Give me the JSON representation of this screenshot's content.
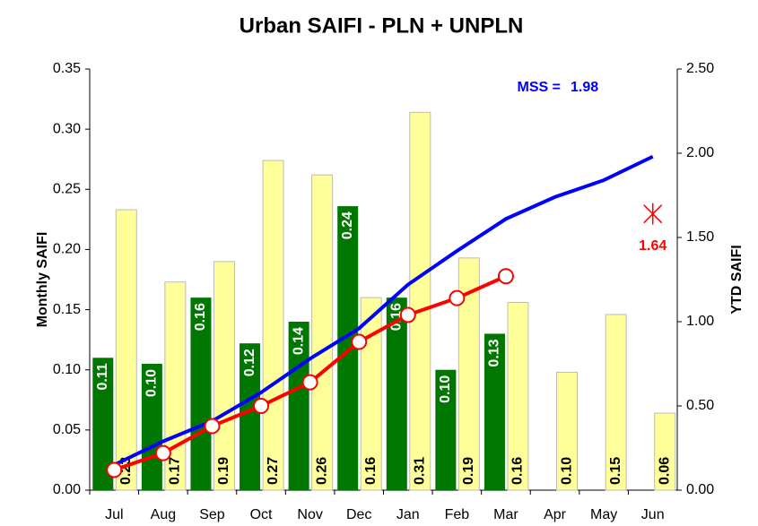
{
  "chart_data": {
    "type": "bar-line",
    "title": "Urban SAIFI - PLN + UNPLN",
    "y_label": "Monthly SAIFI",
    "y2_label": "YTD SAIFI",
    "categories": [
      "Jul",
      "Aug",
      "Sep",
      "Oct",
      "Nov",
      "Dec",
      "Jan",
      "Feb",
      "Mar",
      "Apr",
      "May",
      "Jun"
    ],
    "series": [
      {
        "type": "bar",
        "color": "#007700",
        "label_color": "#ffffff",
        "values": [
          0.11,
          0.105,
          0.16,
          0.122,
          0.14,
          0.236,
          0.16,
          0.1,
          0.13,
          null,
          null,
          null
        ],
        "value_labels": [
          "0.11",
          "0.10",
          "0.16",
          "0.12",
          "0.14",
          "0.24",
          "0.16",
          "0.10",
          "0.13",
          null,
          null,
          null
        ]
      },
      {
        "type": "bar",
        "color": "#ffff99",
        "label_color": "#000000",
        "values": [
          0.233,
          0.173,
          0.19,
          0.274,
          0.262,
          0.16,
          0.314,
          0.193,
          0.156,
          0.098,
          0.146,
          0.064
        ],
        "value_labels": [
          "0.23",
          "0.17",
          "0.19",
          "0.27",
          "0.26",
          "0.16",
          "0.31",
          "0.19",
          "0.16",
          "0.10",
          "0.15",
          "0.06"
        ]
      },
      {
        "type": "line",
        "axis": "y2",
        "color": "#0000ff",
        "values": [
          0.15,
          0.29,
          0.41,
          0.58,
          0.78,
          0.96,
          1.22,
          1.42,
          1.61,
          1.74,
          1.84,
          1.98
        ]
      },
      {
        "type": "line",
        "axis": "y2",
        "color": "#ff0000",
        "markers": true,
        "values": [
          0.12,
          0.22,
          0.38,
          0.5,
          0.64,
          0.88,
          1.04,
          1.14,
          1.27,
          null,
          null,
          null
        ]
      }
    ],
    "mss": {
      "label": "MSS =",
      "value": 1.98,
      "color": "#0000ff"
    },
    "target": {
      "x": "Jun",
      "value": 1.64,
      "color": "#ff0000"
    },
    "ylim": [
      0,
      0.35
    ],
    "yticks": [
      {
        "value": 0,
        "label": "0.00"
      },
      {
        "value": 0.05,
        "label": "0.05"
      },
      {
        "value": 0.1,
        "label": "0.10"
      },
      {
        "value": 0.15,
        "label": "0.15"
      },
      {
        "value": 0.2,
        "label": "0.20"
      },
      {
        "value": 0.25,
        "label": "0.25"
      },
      {
        "value": 0.3,
        "label": "0.30"
      },
      {
        "value": 0.35,
        "label": "0.35"
      }
    ],
    "y2lim": [
      0,
      2.5
    ],
    "y2ticks": [
      {
        "value": 0,
        "label": "0.00"
      },
      {
        "value": 0.5,
        "label": "0.50"
      },
      {
        "value": 1,
        "label": "1.00"
      },
      {
        "value": 1.5,
        "label": "1.50"
      },
      {
        "value": 2,
        "label": "2.00"
      },
      {
        "value": 2.5,
        "label": "2.50"
      }
    ],
    "grid": false
  }
}
